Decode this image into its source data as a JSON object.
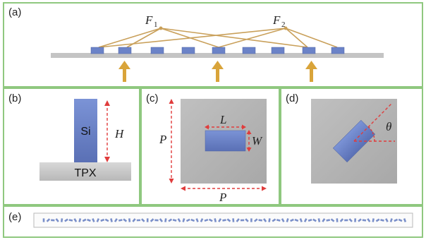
{
  "panels": {
    "a": {
      "tag": "(a)",
      "focus1": {
        "letter": "F",
        "sub": "1"
      },
      "focus2": {
        "letter": "F",
        "sub": "2"
      }
    },
    "b": {
      "tag": "(b)",
      "pillar_label": "Si",
      "substrate_label": "TPX",
      "height_label": "H"
    },
    "c": {
      "tag": "(c)",
      "length_label": "L",
      "width_label": "W",
      "period_left_label": "P",
      "period_bottom_label": "P"
    },
    "d": {
      "tag": "(d)",
      "angle_label": "θ"
    },
    "e": {
      "tag": "(e)"
    }
  },
  "colors": {
    "panel_border": "#8fc87f",
    "beam_lines": "#c9a05a",
    "arrow": "#d9a43a",
    "element_fill": "#6b83c8",
    "substrate": "#c8c8c8",
    "dimension_line": "#e03c3c"
  },
  "icons": [
    "up-arrow-icon",
    "dashed-dimension-arrow-icon"
  ]
}
